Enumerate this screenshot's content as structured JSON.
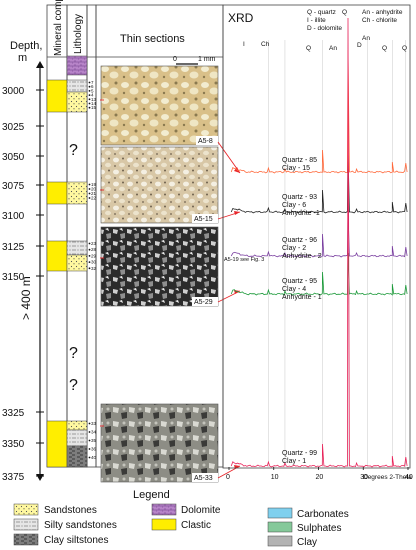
{
  "headers": {
    "mineral": "Mineral compos.",
    "lithology": "Lithology",
    "thin_sections": "Thin sections",
    "xrd": "XRD"
  },
  "depth_axis": {
    "label_line1": "Depth,",
    "label_line2": "m",
    "ticks": [
      "3000",
      "3025",
      "3050",
      "3075",
      "3100",
      "3125",
      "3150",
      "3325",
      "3350",
      "3375"
    ],
    "gap_label": "> 400 m"
  },
  "unknown_marks": [
    "?",
    "?",
    "?"
  ],
  "scale_bar": {
    "zero": "0",
    "length": "1 mm"
  },
  "sample_numbers": {
    "s1": [
      "7",
      "6",
      "5",
      "4",
      "13",
      "14",
      "15"
    ],
    "s2": [
      "19",
      "20",
      "21",
      "22"
    ],
    "s3": [
      "23",
      "28",
      "29",
      "30",
      "32"
    ],
    "s4": [
      "33",
      "34",
      "35",
      "36",
      "40"
    ]
  },
  "thin_section_labels": [
    "A5-8",
    "A5-15",
    "A5-29",
    "A5-33"
  ],
  "fig_note": "A5-19 see Fig. 3",
  "xrd_legend": {
    "left": [
      "Q - quartz",
      "I - illite",
      "D - dolomite"
    ],
    "right": [
      "An - anhydrite",
      "Ch - chlorite"
    ]
  },
  "peak_labels": {
    "I": "I",
    "Ch": "Ch",
    "Q1": "Q",
    "An1": "An",
    "D": "D",
    "An2": "An",
    "Q2": "Q",
    "Q3": "Q",
    "Qtop": "Q"
  },
  "compositions": [
    [
      "Quartz - 85",
      "Clay - 15"
    ],
    [
      "Quartz - 93",
      "Clay - 6",
      "Anhydrite -1"
    ],
    [
      "Quartz - 96",
      "Clay - 2",
      "Anhydrite - 2"
    ],
    [
      "Quartz - 95",
      "Clay - 4",
      "Anhydrite - 1"
    ],
    [
      "Quartz - 99",
      "Clay - 1"
    ]
  ],
  "xrd_axis": {
    "ticks": [
      "0",
      "10",
      "20",
      "30",
      "40"
    ],
    "label": "Degrees 2-Theta"
  },
  "legend": {
    "title": "Legend",
    "items": [
      "Sandstones",
      "Silty sandstones",
      "Clay siltstones",
      "Dolomite",
      "Clastic",
      "Carbonates",
      "Sulphates",
      "Clay"
    ]
  },
  "colors": {
    "clastic": "#ffee00",
    "sandstone": "#fff8a0",
    "dolomite": "#b784c8",
    "carbonates": "#7fd0ee",
    "sulphates": "#85c99a",
    "clay": "#b3b3b3",
    "trace_1": "#ff6a3d",
    "trace_2": "#222222",
    "trace_3": "#7a3fa0",
    "trace_4": "#1c9a3a",
    "trace_5": "#e8245a",
    "arrow": "#e8262b"
  }
}
